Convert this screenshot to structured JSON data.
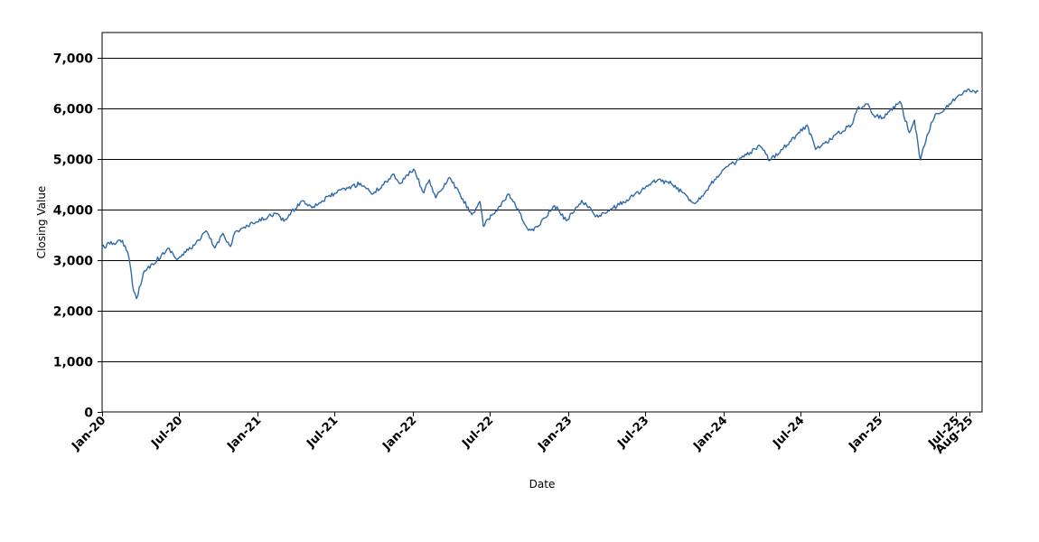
{
  "chart_data": {
    "type": "line",
    "title": "",
    "xlabel": "Date",
    "ylabel": "Closing Value",
    "ylim": [
      0,
      7500
    ],
    "xlim": [
      "2020-01-02",
      "2025-08-31"
    ],
    "grid": {
      "horizontal": true,
      "vertical": false
    },
    "line_color": "#2e6aa8",
    "y_ticks": [
      {
        "value": 0,
        "label": "0"
      },
      {
        "value": 1000,
        "label": "1,000"
      },
      {
        "value": 2000,
        "label": "2,000"
      },
      {
        "value": 3000,
        "label": "3,000"
      },
      {
        "value": 4000,
        "label": "4,000"
      },
      {
        "value": 5000,
        "label": "5,000"
      },
      {
        "value": 6000,
        "label": "6,000"
      },
      {
        "value": 7000,
        "label": "7,000"
      }
    ],
    "x_ticks": [
      {
        "date": "2020-01-01",
        "label": "Jan-20"
      },
      {
        "date": "2020-07-01",
        "label": "Jul-20"
      },
      {
        "date": "2021-01-01",
        "label": "Jan-21"
      },
      {
        "date": "2021-07-01",
        "label": "Jul-21"
      },
      {
        "date": "2022-01-01",
        "label": "Jan-22"
      },
      {
        "date": "2022-07-01",
        "label": "Jul-22"
      },
      {
        "date": "2023-01-01",
        "label": "Jan-23"
      },
      {
        "date": "2023-07-01",
        "label": "Jul-23"
      },
      {
        "date": "2024-01-01",
        "label": "Jan-24"
      },
      {
        "date": "2024-07-01",
        "label": "Jul-24"
      },
      {
        "date": "2025-01-01",
        "label": "Jan-25"
      },
      {
        "date": "2025-07-01",
        "label": "Jul-25"
      },
      {
        "date": "2025-08-01",
        "label": "Aug-25"
      }
    ],
    "series": [
      {
        "x": [
          "2020-01-02",
          "2020-01-20",
          "2020-02-19",
          "2020-03-05",
          "2020-03-16",
          "2020-03-23",
          "2020-04-08",
          "2020-04-29",
          "2020-06-08",
          "2020-06-26",
          "2020-08-18",
          "2020-09-02",
          "2020-09-23",
          "2020-10-12",
          "2020-10-30",
          "2020-11-09",
          "2020-12-31",
          "2021-02-12",
          "2021-03-04",
          "2021-04-15",
          "2021-05-12",
          "2021-07-01",
          "2021-08-31",
          "2021-09-30",
          "2021-11-18",
          "2021-12-01",
          "2022-01-03",
          "2022-01-27",
          "2022-02-09",
          "2022-02-24",
          "2022-03-29",
          "2022-05-20",
          "2022-06-08",
          "2022-06-16",
          "2022-08-16",
          "2022-09-30",
          "2022-10-12",
          "2022-11-30",
          "2022-12-28",
          "2023-02-02",
          "2023-03-13",
          "2023-05-19",
          "2023-07-31",
          "2023-09-01",
          "2023-10-27",
          "2023-12-29",
          "2024-03-28",
          "2024-04-19",
          "2024-07-16",
          "2024-08-05",
          "2024-10-31",
          "2024-11-11",
          "2024-12-06",
          "2024-12-19",
          "2025-01-10",
          "2025-02-19",
          "2025-03-13",
          "2025-03-25",
          "2025-04-08",
          "2025-04-24",
          "2025-05-13",
          "2025-06-06",
          "2025-06-30",
          "2025-07-31",
          "2025-08-22"
        ],
        "y": [
          3250,
          3320,
          3390,
          3050,
          2390,
          2240,
          2750,
          2930,
          3230,
          3010,
          3390,
          3580,
          3240,
          3530,
          3270,
          3550,
          3756,
          3930,
          3770,
          4170,
          4060,
          4320,
          4520,
          4310,
          4700,
          4510,
          4800,
          4330,
          4590,
          4230,
          4630,
          3900,
          4160,
          3670,
          4300,
          3590,
          3580,
          4080,
          3780,
          4180,
          3850,
          4190,
          4590,
          4510,
          4120,
          4770,
          5250,
          4970,
          5670,
          5190,
          5700,
          6000,
          6090,
          5870,
          5820,
          6140,
          5520,
          5770,
          4980,
          5480,
          5890,
          6000,
          6200,
          6380,
          6330
        ]
      }
    ]
  }
}
